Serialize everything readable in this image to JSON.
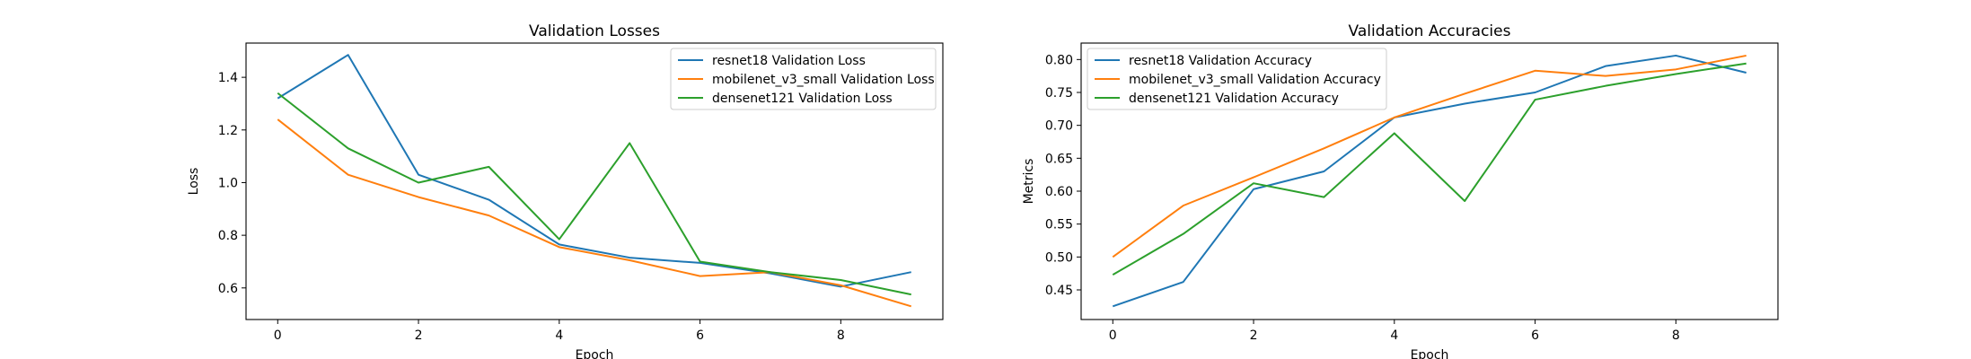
{
  "chart_data": [
    {
      "type": "line",
      "title": "Validation Losses",
      "xlabel": "Epoch",
      "ylabel": "Loss",
      "x": [
        0,
        1,
        2,
        3,
        4,
        5,
        6,
        7,
        8,
        9
      ],
      "xlim": [
        -0.45,
        9.45
      ],
      "ylim": [
        0.48,
        1.53
      ],
      "xticks": [
        0,
        2,
        4,
        6,
        8
      ],
      "yticks": [
        0.6,
        0.8,
        1.0,
        1.2,
        1.4
      ],
      "ytick_labels": [
        "0.6",
        "0.8",
        "1.0",
        "1.2",
        "1.4"
      ],
      "grid": false,
      "legend_position": "top-right",
      "series": [
        {
          "name": "resnet18 Validation Loss",
          "color": "#1f77b4",
          "values": [
            1.32,
            1.485,
            1.03,
            0.935,
            0.765,
            0.715,
            0.695,
            0.655,
            0.605,
            0.66
          ]
        },
        {
          "name": "mobilenet_v3_small Validation Loss",
          "color": "#ff7f0e",
          "values": [
            1.24,
            1.03,
            0.945,
            0.875,
            0.755,
            0.705,
            0.645,
            0.66,
            0.61,
            0.53
          ]
        },
        {
          "name": "densenet121 Validation Loss",
          "color": "#2ca02c",
          "values": [
            1.34,
            1.13,
            1.0,
            1.06,
            0.785,
            1.15,
            0.7,
            0.66,
            0.63,
            0.575
          ]
        }
      ]
    },
    {
      "type": "line",
      "title": "Validation Accuracies",
      "xlabel": "Epoch",
      "ylabel": "Metrics",
      "x": [
        0,
        1,
        2,
        3,
        4,
        5,
        6,
        7,
        8,
        9
      ],
      "xlim": [
        -0.45,
        9.45
      ],
      "ylim": [
        0.405,
        0.825
      ],
      "xticks": [
        0,
        2,
        4,
        6,
        8
      ],
      "yticks": [
        0.45,
        0.5,
        0.55,
        0.6,
        0.65,
        0.7,
        0.75,
        0.8
      ],
      "ytick_labels": [
        "0.45",
        "0.50",
        "0.55",
        "0.60",
        "0.65",
        "0.70",
        "0.75",
        "0.80"
      ],
      "grid": false,
      "legend_position": "top-left",
      "series": [
        {
          "name": "resnet18 Validation Accuracy",
          "color": "#1f77b4",
          "values": [
            0.425,
            0.462,
            0.603,
            0.63,
            0.712,
            0.733,
            0.75,
            0.79,
            0.806,
            0.78
          ]
        },
        {
          "name": "mobilenet_v3_small Validation Accuracy",
          "color": "#ff7f0e",
          "values": [
            0.5,
            0.578,
            0.621,
            0.665,
            0.712,
            0.748,
            0.783,
            0.775,
            0.785,
            0.806
          ]
        },
        {
          "name": "densenet121 Validation Accuracy",
          "color": "#2ca02c",
          "values": [
            0.473,
            0.535,
            0.612,
            0.591,
            0.688,
            0.585,
            0.739,
            0.76,
            0.778,
            0.794
          ]
        }
      ]
    }
  ]
}
